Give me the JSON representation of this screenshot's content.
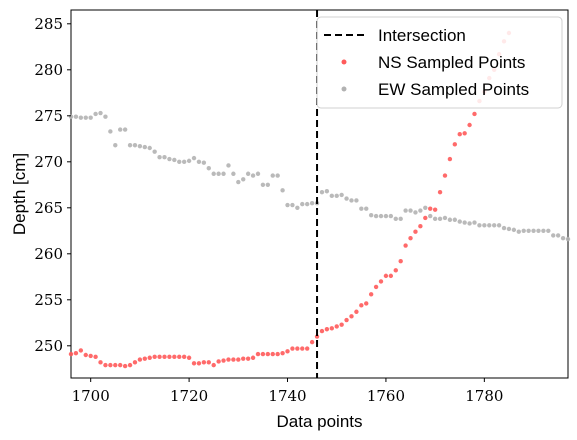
{
  "chart_data": {
    "type": "scatter",
    "xlabel": "Data points",
    "ylabel": "Depth [cm]",
    "xlim": [
      1696,
      1797
    ],
    "ylim": [
      246.5,
      286.5
    ],
    "xticks": [
      1700,
      1720,
      1740,
      1760,
      1780
    ],
    "yticks": [
      250,
      255,
      260,
      265,
      270,
      275,
      280,
      285
    ],
    "grid": false,
    "legend_position": "top-right",
    "intersection": {
      "label": "Intersection",
      "x": 1746,
      "color": "#000000",
      "style": "dashed"
    },
    "series": [
      {
        "name": "NS Sampled Points",
        "color": "#ff5a5a",
        "x": [
          1696,
          1697,
          1698,
          1699,
          1700,
          1701,
          1702,
          1703,
          1704,
          1705,
          1706,
          1707,
          1708,
          1709,
          1710,
          1711,
          1712,
          1713,
          1714,
          1715,
          1716,
          1717,
          1718,
          1719,
          1720,
          1721,
          1722,
          1723,
          1724,
          1725,
          1726,
          1727,
          1728,
          1729,
          1730,
          1731,
          1732,
          1733,
          1734,
          1735,
          1736,
          1737,
          1738,
          1739,
          1740,
          1741,
          1742,
          1743,
          1744,
          1745,
          1746,
          1747,
          1748,
          1749,
          1750,
          1751,
          1752,
          1753,
          1754,
          1755,
          1756,
          1757,
          1758,
          1759,
          1760,
          1761,
          1762,
          1763,
          1764,
          1765,
          1766,
          1767,
          1768,
          1769,
          1770,
          1771,
          1772,
          1773,
          1774,
          1775,
          1776,
          1777,
          1778,
          1779,
          1780,
          1781,
          1782,
          1783,
          1784,
          1785
        ],
        "y": [
          249.1,
          249.2,
          249.5,
          249.0,
          248.9,
          248.8,
          248.2,
          247.9,
          247.9,
          247.9,
          247.9,
          247.8,
          247.9,
          248.2,
          248.5,
          248.6,
          248.7,
          248.8,
          248.8,
          248.8,
          248.8,
          248.8,
          248.8,
          248.8,
          248.7,
          248.1,
          248.1,
          248.2,
          248.2,
          247.9,
          248.3,
          248.4,
          248.5,
          248.5,
          248.5,
          248.6,
          248.6,
          248.7,
          249.1,
          249.1,
          249.1,
          249.1,
          249.1,
          249.2,
          249.4,
          249.7,
          249.7,
          249.7,
          249.7,
          250.4,
          251.0,
          251.6,
          251.8,
          251.9,
          252.1,
          252.3,
          252.8,
          253.2,
          253.7,
          254.4,
          254.6,
          255.6,
          256.4,
          257.0,
          257.6,
          257.6,
          258.2,
          259.2,
          260.9,
          261.7,
          262.4,
          263.0,
          263.9,
          264.9,
          264.8,
          266.7,
          268.5,
          270.3,
          271.9,
          273.0,
          273.1,
          274.0,
          275.2,
          276.6,
          277.6,
          279.1,
          280.0,
          281.7,
          283.1,
          284.0
        ]
      },
      {
        "name": "EW Sampled Points",
        "color": "#b2b2b2",
        "x": [
          1696,
          1697,
          1698,
          1699,
          1700,
          1701,
          1702,
          1703,
          1704,
          1705,
          1706,
          1707,
          1708,
          1709,
          1710,
          1711,
          1712,
          1713,
          1714,
          1715,
          1716,
          1717,
          1718,
          1719,
          1720,
          1721,
          1722,
          1723,
          1724,
          1725,
          1726,
          1727,
          1728,
          1729,
          1730,
          1731,
          1732,
          1733,
          1734,
          1735,
          1736,
          1737,
          1738,
          1739,
          1740,
          1741,
          1742,
          1743,
          1744,
          1745,
          1746,
          1747,
          1748,
          1749,
          1750,
          1751,
          1752,
          1753,
          1754,
          1755,
          1756,
          1757,
          1758,
          1759,
          1760,
          1761,
          1762,
          1763,
          1764,
          1765,
          1766,
          1767,
          1768,
          1769,
          1770,
          1771,
          1772,
          1773,
          1774,
          1775,
          1776,
          1777,
          1778,
          1779,
          1780,
          1781,
          1782,
          1783,
          1784,
          1785,
          1786,
          1787,
          1788,
          1789,
          1790,
          1791,
          1792,
          1793,
          1794,
          1795,
          1796,
          1797
        ],
        "y": [
          274.9,
          274.9,
          274.8,
          274.8,
          274.8,
          275.2,
          275.3,
          274.9,
          273.3,
          271.8,
          273.5,
          273.5,
          271.8,
          271.8,
          271.7,
          271.6,
          271.5,
          271.1,
          270.5,
          270.5,
          270.3,
          270.2,
          270.0,
          270.0,
          270.1,
          270.4,
          270.0,
          269.9,
          269.3,
          268.7,
          268.7,
          268.7,
          269.6,
          268.7,
          267.8,
          268.1,
          268.7,
          268.5,
          268.7,
          267.5,
          267.5,
          268.5,
          268.5,
          266.9,
          265.3,
          265.3,
          265.0,
          265.4,
          265.4,
          265.5,
          265.5,
          266.7,
          266.8,
          266.3,
          266.3,
          266.4,
          266.0,
          265.8,
          265.8,
          264.9,
          264.9,
          264.2,
          264.1,
          264.1,
          264.1,
          264.1,
          263.8,
          263.8,
          264.7,
          264.7,
          264.5,
          264.7,
          265.0,
          264.1,
          263.8,
          263.8,
          263.9,
          263.7,
          263.7,
          263.5,
          263.4,
          263.3,
          263.4,
          263.1,
          263.1,
          263.1,
          263.1,
          263.1,
          262.8,
          262.7,
          262.6,
          262.4,
          262.5,
          262.5,
          262.5,
          262.5,
          262.5,
          262.5,
          262.0,
          262.0,
          261.7,
          261.6
        ]
      }
    ]
  }
}
